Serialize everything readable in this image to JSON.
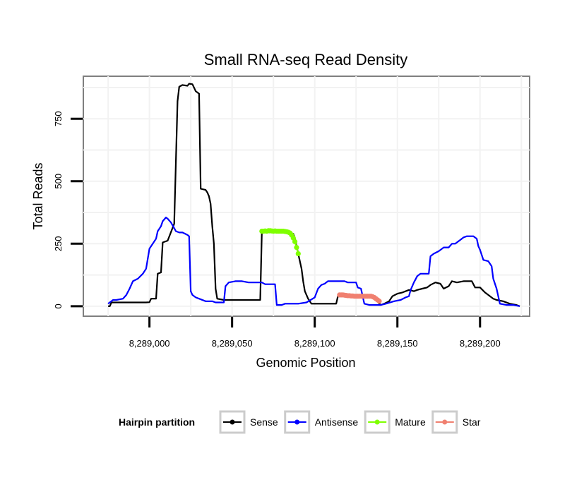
{
  "chart_data": {
    "type": "line",
    "title": "Small RNA-seq Read Density",
    "xlabel": "Genomic Position",
    "ylabel": "Total Reads",
    "xlim": [
      8288960,
      8289230
    ],
    "ylim": [
      -40,
      920
    ],
    "x_ticks": [
      8289000,
      8289050,
      8289100,
      8289150,
      8289200
    ],
    "x_tick_labels": [
      "8,289,000",
      "8,289,050",
      "8,289,100",
      "8,289,150",
      "8,289,200"
    ],
    "y_ticks": [
      0,
      250,
      500,
      750
    ],
    "y_tick_labels": [
      "0",
      "250",
      "500",
      "750"
    ],
    "grid": true,
    "legend_position": "bottom",
    "legend_title": "Hairpin partition",
    "series": [
      {
        "name": "Sense",
        "color": "#000000",
        "points": [
          [
            8288975,
            0
          ],
          [
            8288976,
            0
          ],
          [
            8288977,
            15
          ],
          [
            8288990,
            15
          ],
          [
            8288998,
            15
          ],
          [
            8289000,
            16
          ],
          [
            8289001,
            30
          ],
          [
            8289004,
            30
          ],
          [
            8289005,
            130
          ],
          [
            8289007,
            135
          ],
          [
            8289008,
            255
          ],
          [
            8289011,
            262
          ],
          [
            8289015,
            330
          ],
          [
            8289017,
            820
          ],
          [
            8289018,
            878
          ],
          [
            8289020,
            885
          ],
          [
            8289023,
            882
          ],
          [
            8289024,
            890
          ],
          [
            8289026,
            888
          ],
          [
            8289028,
            860
          ],
          [
            8289030,
            850
          ],
          [
            8289031,
            470
          ],
          [
            8289034,
            465
          ],
          [
            8289035,
            455
          ],
          [
            8289036,
            440
          ],
          [
            8289037,
            410
          ],
          [
            8289038,
            320
          ],
          [
            8289039,
            250
          ],
          [
            8289040,
            70
          ],
          [
            8289041,
            30
          ],
          [
            8289045,
            25
          ],
          [
            8289060,
            25
          ],
          [
            8289067,
            25
          ],
          [
            8289068,
            295
          ],
          [
            8289069,
            295
          ],
          [
            8289085,
            295
          ],
          [
            8289087,
            290
          ],
          [
            8289088,
            270
          ],
          [
            8289089,
            240
          ],
          [
            8289090,
            210
          ],
          [
            8289092,
            150
          ],
          [
            8289093,
            100
          ],
          [
            8289094,
            60
          ],
          [
            8289096,
            30
          ],
          [
            8289098,
            10
          ],
          [
            8289105,
            10
          ],
          [
            8289113,
            10
          ],
          [
            8289114,
            40
          ],
          [
            8289115,
            45
          ],
          [
            8289120,
            40
          ],
          [
            8289125,
            40
          ],
          [
            8289130,
            40
          ],
          [
            8289135,
            35
          ],
          [
            8289137,
            30
          ],
          [
            8289138,
            20
          ],
          [
            8289139,
            10
          ],
          [
            8289140,
            5
          ],
          [
            8289142,
            10
          ],
          [
            8289145,
            20
          ],
          [
            8289147,
            40
          ],
          [
            8289150,
            50
          ],
          [
            8289153,
            55
          ],
          [
            8289157,
            65
          ],
          [
            8289160,
            60
          ],
          [
            8289162,
            65
          ],
          [
            8289165,
            70
          ],
          [
            8289168,
            75
          ],
          [
            8289170,
            85
          ],
          [
            8289173,
            95
          ],
          [
            8289176,
            90
          ],
          [
            8289178,
            70
          ],
          [
            8289181,
            80
          ],
          [
            8289183,
            100
          ],
          [
            8289186,
            95
          ],
          [
            8289190,
            100
          ],
          [
            8289195,
            100
          ],
          [
            8289197,
            75
          ],
          [
            8289200,
            75
          ],
          [
            8289203,
            55
          ],
          [
            8289205,
            45
          ],
          [
            8289208,
            30
          ],
          [
            8289210,
            25
          ],
          [
            8289214,
            20
          ],
          [
            8289218,
            10
          ],
          [
            8289222,
            5
          ],
          [
            8289224,
            0
          ]
        ]
      },
      {
        "name": "Antisense",
        "color": "#0000ff",
        "points": [
          [
            8288975,
            10
          ],
          [
            8288978,
            25
          ],
          [
            8288980,
            25
          ],
          [
            8288984,
            30
          ],
          [
            8288986,
            45
          ],
          [
            8288988,
            70
          ],
          [
            8288990,
            100
          ],
          [
            8288993,
            110
          ],
          [
            8288996,
            130
          ],
          [
            8288998,
            150
          ],
          [
            8289000,
            230
          ],
          [
            8289002,
            250
          ],
          [
            8289004,
            270
          ],
          [
            8289005,
            300
          ],
          [
            8289007,
            320
          ],
          [
            8289008,
            340
          ],
          [
            8289010,
            355
          ],
          [
            8289011,
            350
          ],
          [
            8289013,
            335
          ],
          [
            8289016,
            300
          ],
          [
            8289018,
            295
          ],
          [
            8289020,
            295
          ],
          [
            8289023,
            285
          ],
          [
            8289024,
            280
          ],
          [
            8289025,
            60
          ],
          [
            8289026,
            45
          ],
          [
            8289028,
            35
          ],
          [
            8289030,
            30
          ],
          [
            8289034,
            20
          ],
          [
            8289038,
            20
          ],
          [
            8289040,
            15
          ],
          [
            8289045,
            15
          ],
          [
            8289046,
            80
          ],
          [
            8289048,
            95
          ],
          [
            8289052,
            100
          ],
          [
            8289056,
            100
          ],
          [
            8289060,
            95
          ],
          [
            8289068,
            95
          ],
          [
            8289070,
            88
          ],
          [
            8289076,
            88
          ],
          [
            8289077,
            5
          ],
          [
            8289080,
            5
          ],
          [
            8289082,
            10
          ],
          [
            8289090,
            10
          ],
          [
            8289095,
            15
          ],
          [
            8289100,
            35
          ],
          [
            8289102,
            70
          ],
          [
            8289104,
            85
          ],
          [
            8289106,
            90
          ],
          [
            8289108,
            100
          ],
          [
            8289112,
            100
          ],
          [
            8289118,
            100
          ],
          [
            8289120,
            95
          ],
          [
            8289125,
            95
          ],
          [
            8289126,
            75
          ],
          [
            8289128,
            70
          ],
          [
            8289130,
            10
          ],
          [
            8289133,
            5
          ],
          [
            8289140,
            5
          ],
          [
            8289143,
            10
          ],
          [
            8289148,
            20
          ],
          [
            8289152,
            25
          ],
          [
            8289155,
            35
          ],
          [
            8289157,
            40
          ],
          [
            8289158,
            65
          ],
          [
            8289160,
            95
          ],
          [
            8289162,
            120
          ],
          [
            8289164,
            130
          ],
          [
            8289166,
            130
          ],
          [
            8289169,
            130
          ],
          [
            8289170,
            200
          ],
          [
            8289172,
            210
          ],
          [
            8289175,
            220
          ],
          [
            8289178,
            235
          ],
          [
            8289181,
            235
          ],
          [
            8289183,
            250
          ],
          [
            8289185,
            250
          ],
          [
            8289188,
            265
          ],
          [
            8289190,
            275
          ],
          [
            8289192,
            280
          ],
          [
            8289196,
            280
          ],
          [
            8289198,
            270
          ],
          [
            8289199,
            240
          ],
          [
            8289200,
            225
          ],
          [
            8289202,
            185
          ],
          [
            8289205,
            180
          ],
          [
            8289207,
            160
          ],
          [
            8289208,
            110
          ],
          [
            8289210,
            70
          ],
          [
            8289212,
            10
          ],
          [
            8289216,
            5
          ],
          [
            8289220,
            5
          ],
          [
            8289224,
            0
          ]
        ]
      },
      {
        "name": "Mature",
        "color": "#7fff00",
        "points": [
          [
            8289068,
            300
          ],
          [
            8289069,
            300
          ],
          [
            8289070,
            301
          ],
          [
            8289071,
            300
          ],
          [
            8289072,
            302
          ],
          [
            8289073,
            302
          ],
          [
            8289074,
            301
          ],
          [
            8289075,
            300
          ],
          [
            8289076,
            301
          ],
          [
            8289077,
            300
          ],
          [
            8289078,
            300
          ],
          [
            8289079,
            300
          ],
          [
            8289080,
            300
          ],
          [
            8289081,
            300
          ],
          [
            8289082,
            299
          ],
          [
            8289083,
            298
          ],
          [
            8289084,
            296
          ],
          [
            8289085,
            293
          ],
          [
            8289086,
            285
          ],
          [
            8289087,
            273
          ],
          [
            8289088,
            258
          ],
          [
            8289089,
            235
          ],
          [
            8289090,
            210
          ]
        ]
      },
      {
        "name": "Star",
        "color": "#f08070",
        "points": [
          [
            8289115,
            45
          ],
          [
            8289116,
            45
          ],
          [
            8289117,
            45
          ],
          [
            8289118,
            44
          ],
          [
            8289119,
            43
          ],
          [
            8289120,
            42
          ],
          [
            8289121,
            42
          ],
          [
            8289122,
            41
          ],
          [
            8289123,
            41
          ],
          [
            8289124,
            40
          ],
          [
            8289125,
            40
          ],
          [
            8289126,
            40
          ],
          [
            8289127,
            40
          ],
          [
            8289128,
            40
          ],
          [
            8289129,
            40
          ],
          [
            8289130,
            40
          ],
          [
            8289131,
            40
          ],
          [
            8289132,
            40
          ],
          [
            8289133,
            40
          ],
          [
            8289134,
            40
          ],
          [
            8289135,
            38
          ],
          [
            8289136,
            35
          ],
          [
            8289137,
            30
          ],
          [
            8289138,
            25
          ],
          [
            8289139,
            20
          ]
        ]
      }
    ]
  }
}
